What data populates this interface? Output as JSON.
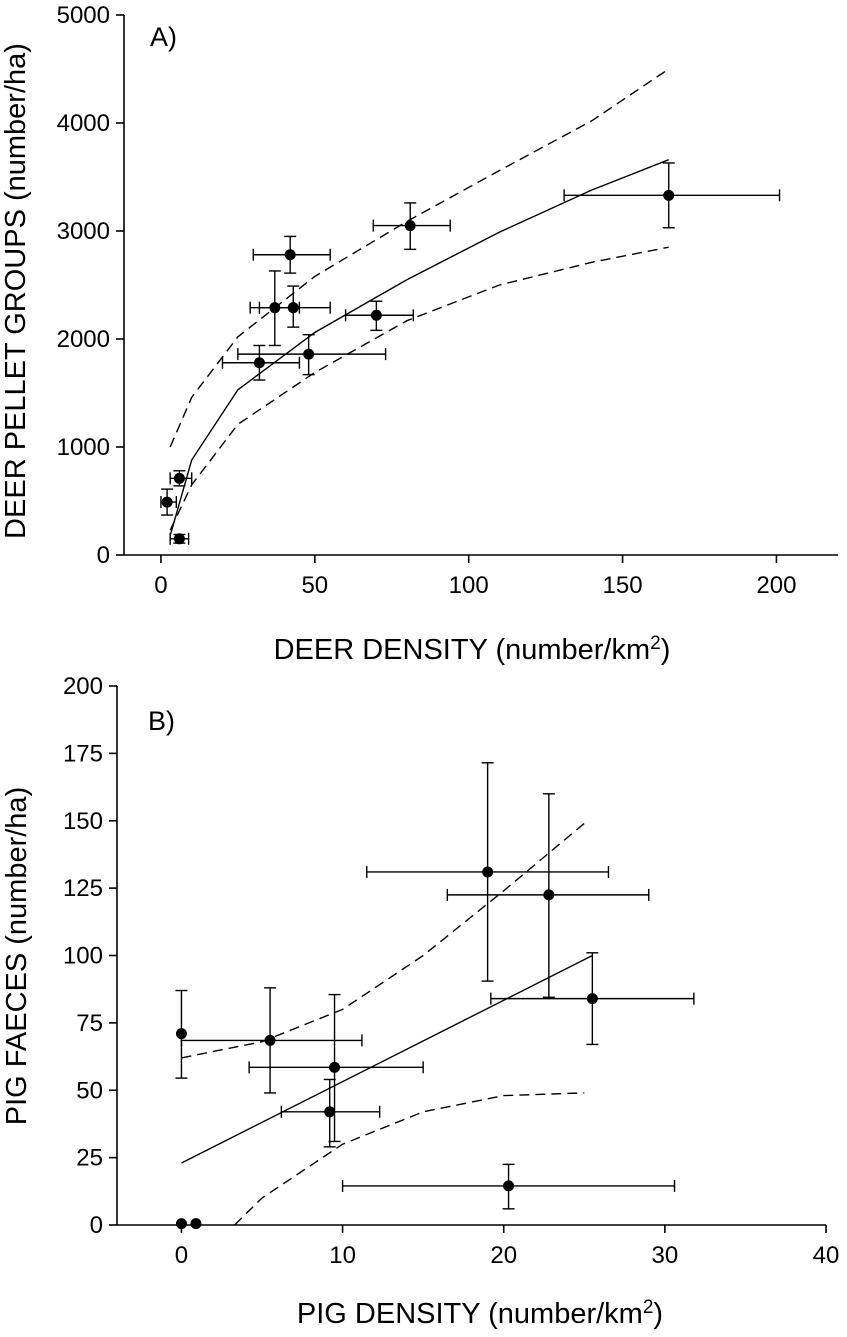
{
  "chart_data": [
    {
      "type": "scatter",
      "panel_label": "A)",
      "xlabel": "DEER DENSITY (number/km",
      "xlabel_sup": "2",
      "xlabel_end": ")",
      "ylabel": "DEER PELLET GROUPS (number/ha)",
      "xlim": [
        -12,
        220
      ],
      "ylim": [
        0,
        5000
      ],
      "xticks": [
        0,
        50,
        100,
        150,
        200
      ],
      "yticks": [
        0,
        1000,
        2000,
        3000,
        4000,
        5000
      ],
      "points": [
        {
          "x": 42,
          "y": 2780,
          "xerr": [
            30,
            55
          ],
          "yerr": [
            2610,
            2950
          ]
        },
        {
          "x": 37,
          "y": 2290,
          "xerr": [
            29,
            45
          ],
          "yerr": [
            1940,
            2630
          ]
        },
        {
          "x": 43,
          "y": 2290,
          "xerr": [
            32,
            55
          ],
          "yerr": [
            2110,
            2490
          ]
        },
        {
          "x": 32,
          "y": 1780,
          "xerr": [
            20,
            45
          ],
          "yerr": [
            1620,
            1940
          ]
        },
        {
          "x": 48,
          "y": 1860,
          "xerr": [
            25,
            73
          ],
          "yerr": [
            1670,
            2040
          ]
        },
        {
          "x": 70,
          "y": 2220,
          "xerr": [
            60,
            82
          ],
          "yerr": [
            2080,
            2350
          ]
        },
        {
          "x": 81,
          "y": 3050,
          "xerr": [
            69,
            94
          ],
          "yerr": [
            2830,
            3260
          ]
        },
        {
          "x": 165,
          "y": 3330,
          "xerr": [
            131,
            201
          ],
          "yerr": [
            3030,
            3630
          ]
        },
        {
          "x": 6,
          "y": 710,
          "xerr": [
            3,
            10
          ],
          "yerr": [
            640,
            780
          ]
        },
        {
          "x": 2,
          "y": 490,
          "xerr": [
            0,
            5
          ],
          "yerr": [
            370,
            610
          ]
        },
        {
          "x": 6,
          "y": 150,
          "xerr": [
            3,
            9
          ],
          "yerr": [
            110,
            190
          ]
        }
      ],
      "fit_line": {
        "x": [
          3,
          10,
          25,
          50,
          80,
          110,
          140,
          165
        ],
        "y": [
          180,
          880,
          1530,
          2060,
          2550,
          2990,
          3380,
          3660
        ]
      },
      "ci_upper": {
        "x": [
          3,
          10,
          25,
          50,
          80,
          110,
          140,
          165
        ],
        "y": [
          1000,
          1460,
          2020,
          2580,
          3090,
          3560,
          4020,
          4500
        ]
      },
      "ci_lower": {
        "x": [
          3,
          10,
          25,
          50,
          80,
          110,
          140,
          165
        ],
        "y": [
          230,
          650,
          1210,
          1690,
          2170,
          2500,
          2710,
          2850
        ]
      }
    },
    {
      "type": "scatter",
      "panel_label": "B)",
      "xlabel": "PIG DENSITY (number/km",
      "xlabel_sup": "2",
      "xlabel_end": ")",
      "ylabel": "PIG FAECES (number/ha)",
      "xlim": [
        -4,
        40
      ],
      "ylim": [
        0,
        200
      ],
      "xticks": [
        0,
        10,
        20,
        30,
        40
      ],
      "yticks": [
        0,
        25,
        50,
        75,
        100,
        125,
        150,
        175,
        200
      ],
      "points": [
        {
          "x": 0,
          "y": 71,
          "xerr": null,
          "yerr": [
            54.5,
            87
          ]
        },
        {
          "x": 5.5,
          "y": 68.5,
          "xerr": [
            0,
            11.2
          ],
          "yerr": [
            49,
            88
          ]
        },
        {
          "x": 9.5,
          "y": 58.5,
          "xerr": [
            4.2,
            15
          ],
          "yerr": [
            31,
            85.5
          ]
        },
        {
          "x": 9.2,
          "y": 42,
          "xerr": [
            6.2,
            12.3
          ],
          "yerr": [
            29,
            54
          ]
        },
        {
          "x": 19,
          "y": 131,
          "xerr": [
            11.5,
            26.5
          ],
          "yerr": [
            90.5,
            171.5
          ]
        },
        {
          "x": 22.8,
          "y": 122.5,
          "xerr": [
            16.5,
            29
          ],
          "yerr": [
            84.5,
            160
          ]
        },
        {
          "x": 25.5,
          "y": 84,
          "xerr": [
            19.2,
            31.8
          ],
          "yerr": [
            67,
            101
          ]
        },
        {
          "x": 20.3,
          "y": 14.5,
          "xerr": [
            10,
            30.6
          ],
          "yerr": [
            6,
            22.5
          ]
        },
        {
          "x": 0,
          "y": 0.5,
          "xerr": null,
          "yerr": null
        },
        {
          "x": 0.9,
          "y": 0.5,
          "xerr": null,
          "yerr": null
        }
      ],
      "fit_line": {
        "x": [
          0,
          25.5
        ],
        "y": [
          23,
          100
        ]
      },
      "ci_upper": {
        "x": [
          0,
          5,
          10,
          15,
          20,
          25
        ],
        "y": [
          62,
          68,
          80,
          100,
          124,
          149
        ]
      },
      "ci_lower": {
        "x": [
          3.3,
          5,
          10,
          15,
          20,
          25
        ],
        "y": [
          0,
          10,
          30,
          42,
          48,
          49
        ]
      }
    }
  ]
}
